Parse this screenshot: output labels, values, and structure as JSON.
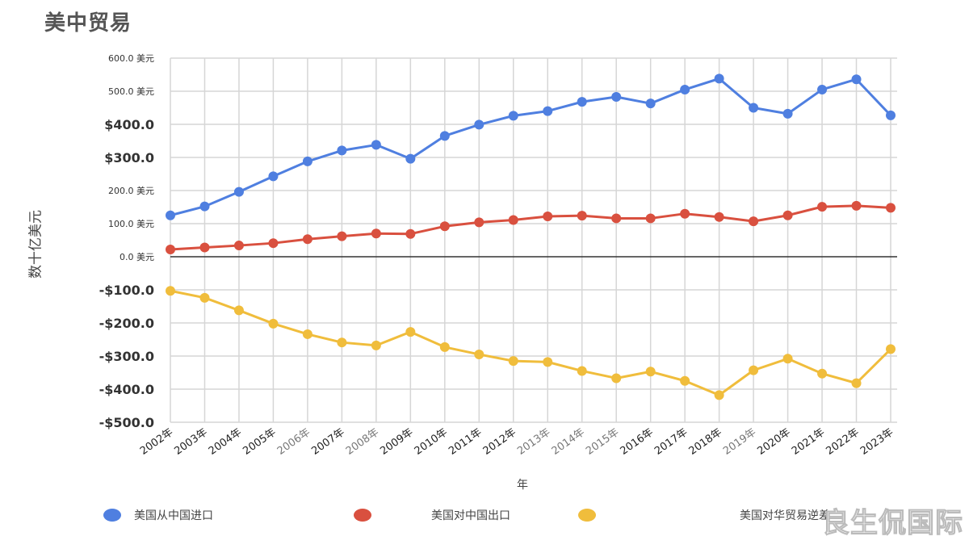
{
  "title": "美中贸易",
  "chart_data": {
    "type": "line",
    "title": "美中贸易",
    "xlabel": "年",
    "ylabel": "数十亿美元",
    "categories": [
      "2002年",
      "2003年",
      "2004年",
      "2005年",
      "2006年",
      "2007年",
      "2008年",
      "2009年",
      "2010年",
      "2011年",
      "2012年",
      "2013年",
      "2014年",
      "2015年",
      "2016年",
      "2017年",
      "2018年",
      "2019年",
      "2020年",
      "2021年",
      "2022年",
      "2023年"
    ],
    "yticks": [
      {
        "value": 600,
        "label": "600.0 美元"
      },
      {
        "value": 500,
        "label": "500.0 美元"
      },
      {
        "value": 400,
        "label": "$400.0"
      },
      {
        "value": 300,
        "label": "$300.0"
      },
      {
        "value": 200,
        "label": "200.0 美元"
      },
      {
        "value": 100,
        "label": "100.0 美元"
      },
      {
        "value": 0,
        "label": "0.0 美元"
      },
      {
        "value": -100,
        "label": "-$100.0"
      },
      {
        "value": -200,
        "label": "-$200.0"
      },
      {
        "value": -300,
        "label": "-$300.0"
      },
      {
        "value": -400,
        "label": "-$400.0"
      },
      {
        "value": -500,
        "label": "-$500.0"
      }
    ],
    "ylim": [
      -500,
      600
    ],
    "grid": true,
    "legend_position": "bottom",
    "series": [
      {
        "name": "美国从中国进口",
        "color": "#4f7fe0",
        "values": [
          125,
          152,
          196,
          243,
          288,
          321,
          338,
          296,
          365,
          399,
          426,
          440,
          468,
          483,
          463,
          505,
          538,
          450,
          432,
          505,
          536,
          427
        ]
      },
      {
        "name": "美国对中国出口",
        "color": "#d9503f",
        "values": [
          22,
          28,
          34,
          41,
          53,
          62,
          70,
          69,
          92,
          104,
          111,
          122,
          124,
          116,
          116,
          130,
          120,
          107,
          125,
          151,
          154,
          148
        ]
      },
      {
        "name": "美国对华贸易逆差",
        "color": "#f0bd3c",
        "values": [
          -103,
          -124,
          -162,
          -202,
          -234,
          -259,
          -268,
          -227,
          -273,
          -295,
          -315,
          -318,
          -345,
          -367,
          -347,
          -375,
          -418,
          -343,
          -308,
          -353,
          -382,
          -279
        ]
      }
    ]
  },
  "watermark": "良生侃国际"
}
